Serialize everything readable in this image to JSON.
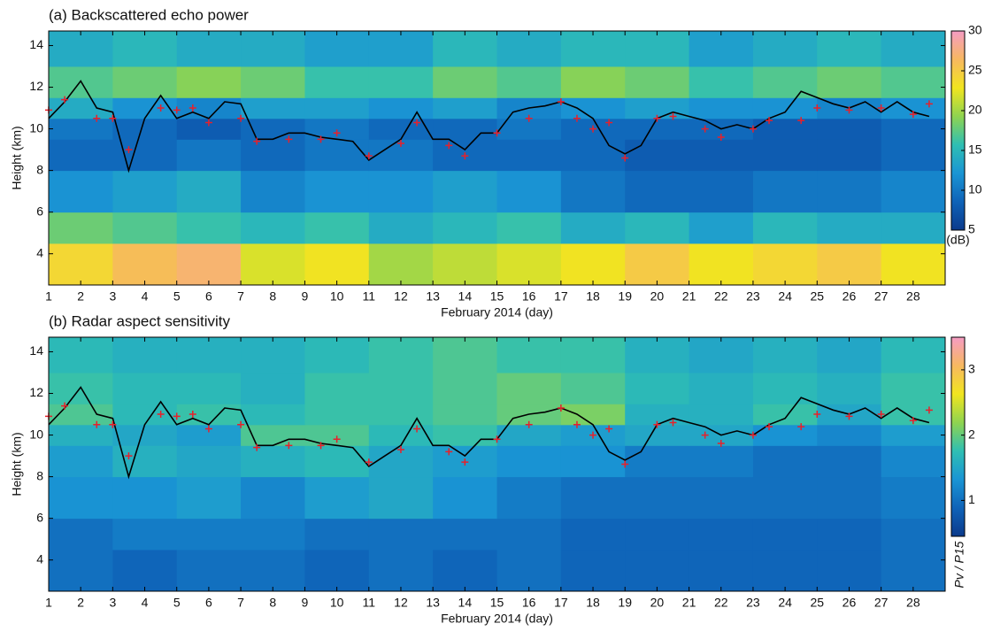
{
  "chart_data": [
    {
      "type": "heatmap",
      "title": "(a) Backscattered echo power",
      "xlabel": "February 2014 (day)",
      "ylabel": "Height (km)",
      "xlim": [
        1,
        29
      ],
      "ylim": [
        2.5,
        14.7
      ],
      "xticks": [
        1,
        2,
        3,
        4,
        5,
        6,
        7,
        8,
        9,
        10,
        11,
        12,
        13,
        14,
        15,
        16,
        17,
        18,
        19,
        20,
        21,
        22,
        23,
        24,
        25,
        26,
        27,
        28
      ],
      "yticks": [
        4,
        6,
        8,
        10,
        12,
        14
      ],
      "x_edges": [
        1,
        3,
        5,
        7,
        9,
        11,
        13,
        15,
        17,
        19,
        21,
        23,
        25,
        27,
        29
      ],
      "y_edges": [
        2.5,
        4.5,
        6,
        8,
        9.5,
        10.5,
        11.5,
        13,
        14.7
      ],
      "z": [
        [
          24,
          26,
          27,
          22,
          23,
          20,
          21,
          22,
          23,
          25,
          23,
          24,
          25,
          23
        ],
        [
          18,
          17,
          16,
          15,
          16,
          14,
          15,
          16,
          14,
          15,
          13,
          15,
          14,
          14
        ],
        [
          12,
          13,
          14,
          11,
          12,
          12,
          13,
          12,
          10,
          9,
          9,
          10,
          10,
          11
        ],
        [
          9,
          9,
          10,
          9,
          10,
          10,
          9,
          9,
          9,
          8,
          8,
          8,
          8,
          9
        ],
        [
          10,
          9,
          8,
          9,
          10,
          9,
          9,
          10,
          9,
          9,
          9,
          8,
          8,
          9
        ],
        [
          14,
          12,
          11,
          13,
          13,
          12,
          13,
          11,
          12,
          13,
          12,
          12,
          11,
          12
        ],
        [
          17,
          18,
          19,
          18,
          16,
          16,
          18,
          17,
          19,
          18,
          16,
          17,
          18,
          17
        ],
        [
          14,
          15,
          14,
          14,
          13,
          13,
          15,
          14,
          15,
          15,
          13,
          14,
          15,
          14
        ]
      ],
      "colormap": [
        "#0b3a8c",
        "#0f63b8",
        "#1a95d4",
        "#2fbfb3",
        "#8fd450",
        "#f1e51f",
        "#f7b860",
        "#f59cc4"
      ],
      "colorbar": {
        "lim": [
          5,
          30
        ],
        "ticks": [
          5,
          10,
          15,
          20,
          25,
          30
        ],
        "label": "(dB)"
      },
      "line": {
        "color": "#000000",
        "x": [
          1,
          1.5,
          2,
          2.5,
          3,
          3.5,
          4,
          4.5,
          5,
          5.5,
          6,
          6.5,
          7,
          7.5,
          8,
          8.5,
          9,
          9.5,
          10,
          10.5,
          11,
          11.5,
          12,
          12.5,
          13,
          13.5,
          14,
          14.5,
          15,
          15.5,
          16,
          16.5,
          17,
          17.5,
          18,
          18.5,
          19,
          19.5,
          20,
          20.5,
          21,
          21.5,
          22,
          22.5,
          23,
          23.5,
          24,
          24.5,
          25,
          25.5,
          26,
          26.5,
          27,
          27.5,
          28,
          28.5
        ],
        "values": [
          10.5,
          11.3,
          12.3,
          11,
          10.8,
          8,
          10.5,
          11.6,
          10.5,
          10.8,
          10.5,
          11.3,
          11.2,
          9.5,
          9.5,
          9.8,
          9.8,
          9.6,
          9.5,
          9.4,
          8.5,
          9,
          9.5,
          10.8,
          9.5,
          9.5,
          9,
          9.8,
          9.8,
          10.8,
          11,
          11.1,
          11.3,
          11,
          10.5,
          9.2,
          8.8,
          9.2,
          10.5,
          10.8,
          10.6,
          10.4,
          10,
          10.2,
          10,
          10.5,
          10.8,
          11.8,
          11.5,
          11.2,
          11,
          11.3,
          10.8,
          11.3,
          10.8,
          10.6
        ]
      },
      "markers": {
        "color": "#e8202a",
        "x": [
          1,
          1.5,
          2.5,
          3,
          3.5,
          4.5,
          5,
          5.5,
          6,
          7,
          7.5,
          8.5,
          9.5,
          10,
          11,
          12,
          12.5,
          13.5,
          14,
          15,
          16,
          17,
          17.5,
          18,
          18.5,
          19,
          20,
          20.5,
          21.5,
          22,
          23,
          23.5,
          24.5,
          25,
          26,
          27,
          28,
          28.5
        ],
        "values": [
          10.9,
          11.4,
          10.5,
          10.5,
          9,
          11,
          10.9,
          11,
          10.3,
          10.5,
          9.4,
          9.5,
          9.5,
          9.8,
          8.7,
          9.3,
          10.3,
          9.2,
          8.7,
          9.8,
          10.5,
          11.3,
          10.5,
          10,
          10.3,
          8.6,
          10.5,
          10.6,
          10,
          9.6,
          10,
          10.4,
          10.4,
          11,
          10.9,
          11,
          10.7,
          11.2
        ]
      }
    },
    {
      "type": "heatmap",
      "title": "(b) Radar aspect sensitivity",
      "xlabel": "February 2014 (day)",
      "ylabel": "Height (km)",
      "xlim": [
        1,
        29
      ],
      "ylim": [
        2.5,
        14.7
      ],
      "xticks": [
        1,
        2,
        3,
        4,
        5,
        6,
        7,
        8,
        9,
        10,
        11,
        12,
        13,
        14,
        15,
        16,
        17,
        18,
        19,
        20,
        21,
        22,
        23,
        24,
        25,
        26,
        27,
        28
      ],
      "yticks": [
        4,
        6,
        8,
        10,
        12,
        14
      ],
      "x_edges": [
        1,
        3,
        5,
        7,
        9,
        11,
        13,
        15,
        17,
        19,
        21,
        23,
        25,
        27,
        29
      ],
      "y_edges": [
        2.5,
        4.5,
        6,
        8,
        9.5,
        10.5,
        11.5,
        13,
        14.7
      ],
      "z": [
        [
          1,
          0.9,
          1,
          1,
          0.9,
          1,
          0.9,
          1,
          0.9,
          0.9,
          0.9,
          0.9,
          0.9,
          1
        ],
        [
          1,
          1.1,
          1.1,
          1.1,
          1,
          1,
          1,
          1,
          0.9,
          0.9,
          0.9,
          0.9,
          0.9,
          1
        ],
        [
          1.3,
          1.3,
          1.4,
          1.2,
          1.4,
          1.5,
          1.3,
          1.1,
          1,
          1,
          1,
          1,
          1,
          1.1
        ],
        [
          1.4,
          1.6,
          1.5,
          1.6,
          1.7,
          1.5,
          1.4,
          1.3,
          1.3,
          1.1,
          1.1,
          1,
          1,
          1.2
        ],
        [
          1.6,
          1.5,
          1.4,
          1.9,
          1.9,
          1.7,
          1.8,
          1.5,
          1.4,
          1.5,
          1.5,
          1.3,
          1.2,
          1.4
        ],
        [
          1.9,
          1.7,
          1.8,
          1.7,
          1.8,
          1.8,
          1.9,
          2,
          2.1,
          1.6,
          1.6,
          1.8,
          1.5,
          1.8
        ],
        [
          1.8,
          1.7,
          1.7,
          1.6,
          1.8,
          1.8,
          1.9,
          2,
          1.9,
          1.7,
          1.6,
          1.7,
          1.6,
          1.8
        ],
        [
          1.7,
          1.6,
          1.6,
          1.6,
          1.7,
          1.8,
          1.9,
          1.8,
          1.8,
          1.6,
          1.5,
          1.6,
          1.5,
          1.7
        ]
      ],
      "colormap": [
        "#0b3a8c",
        "#0f63b8",
        "#1a95d4",
        "#2fbfb3",
        "#8fd450",
        "#f1e51f",
        "#f7b860",
        "#f59cc4"
      ],
      "colorbar": {
        "lim": [
          0.45,
          3.5
        ],
        "ticks": [
          1,
          2,
          3
        ],
        "label": "Pv / P15"
      },
      "line": {
        "color": "#000000",
        "x": [
          1,
          1.5,
          2,
          2.5,
          3,
          3.5,
          4,
          4.5,
          5,
          5.5,
          6,
          6.5,
          7,
          7.5,
          8,
          8.5,
          9,
          9.5,
          10,
          10.5,
          11,
          11.5,
          12,
          12.5,
          13,
          13.5,
          14,
          14.5,
          15,
          15.5,
          16,
          16.5,
          17,
          17.5,
          18,
          18.5,
          19,
          19.5,
          20,
          20.5,
          21,
          21.5,
          22,
          22.5,
          23,
          23.5,
          24,
          24.5,
          25,
          25.5,
          26,
          26.5,
          27,
          27.5,
          28,
          28.5
        ],
        "values": [
          10.5,
          11.3,
          12.3,
          11,
          10.8,
          8,
          10.5,
          11.6,
          10.5,
          10.8,
          10.5,
          11.3,
          11.2,
          9.5,
          9.5,
          9.8,
          9.8,
          9.6,
          9.5,
          9.4,
          8.5,
          9,
          9.5,
          10.8,
          9.5,
          9.5,
          9,
          9.8,
          9.8,
          10.8,
          11,
          11.1,
          11.3,
          11,
          10.5,
          9.2,
          8.8,
          9.2,
          10.5,
          10.8,
          10.6,
          10.4,
          10,
          10.2,
          10,
          10.5,
          10.8,
          11.8,
          11.5,
          11.2,
          11,
          11.3,
          10.8,
          11.3,
          10.8,
          10.6
        ]
      },
      "markers": {
        "color": "#e8202a",
        "x": [
          1,
          1.5,
          2.5,
          3,
          3.5,
          4.5,
          5,
          5.5,
          6,
          7,
          7.5,
          8.5,
          9.5,
          10,
          11,
          12,
          12.5,
          13.5,
          14,
          15,
          16,
          17,
          17.5,
          18,
          18.5,
          19,
          20,
          20.5,
          21.5,
          22,
          23,
          23.5,
          24.5,
          25,
          26,
          27,
          28,
          28.5
        ],
        "values": [
          10.9,
          11.4,
          10.5,
          10.5,
          9,
          11,
          10.9,
          11,
          10.3,
          10.5,
          9.4,
          9.5,
          9.5,
          9.8,
          8.7,
          9.3,
          10.3,
          9.2,
          8.7,
          9.8,
          10.5,
          11.3,
          10.5,
          10,
          10.3,
          8.6,
          10.5,
          10.6,
          10,
          9.6,
          10,
          10.4,
          10.4,
          11,
          10.9,
          11,
          10.7,
          11.2
        ]
      }
    }
  ]
}
